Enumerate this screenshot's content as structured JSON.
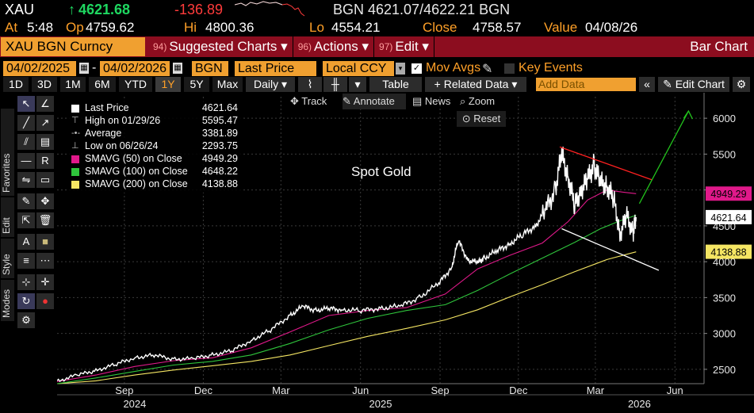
{
  "ticker": {
    "symbol": "XAU",
    "arrow": "↑",
    "last": "4621.68",
    "change": "-136.89",
    "source_quote": "BGN 4621.07/4622.21 BGN"
  },
  "info": {
    "at_label": "At",
    "at_value": "5:48",
    "op_label": "Op",
    "op_value": "4759.62",
    "hi_label": "Hi",
    "hi_value": "4800.36",
    "lo_label": "Lo",
    "lo_value": "4554.21",
    "close_label": "Close",
    "close_value": "4758.57",
    "value_label": "Value",
    "value_value": "04/08/26"
  },
  "menu": {
    "security": "XAU BGN Curncy",
    "items": [
      {
        "num": "94)",
        "label": "Suggested Charts ▾"
      },
      {
        "num": "96)",
        "label": "Actions ▾"
      },
      {
        "num": "97)",
        "label": "Edit ▾"
      }
    ],
    "right_label": "Bar Chart"
  },
  "daterow": {
    "start": "04/02/2025",
    "dash": "-",
    "end": "04/02/2026",
    "source": "BGN",
    "field": "Last Price",
    "currency": "Local CCY",
    "mov_avgs": "Mov Avgs",
    "key_events": "Key Events"
  },
  "toolrow": {
    "periods": [
      "1D",
      "3D",
      "1M",
      "6M",
      "YTD",
      "1Y",
      "5Y",
      "Max"
    ],
    "selected_period": "1Y",
    "frequency": "Daily ▾",
    "table": "Table",
    "related": "+ Related Data ▾",
    "add_data_placeholder": "Add Data",
    "edit_chart": "Edit Chart"
  },
  "sidebar_tabs": [
    "Favorites",
    "Edit",
    "Style",
    "Modes"
  ],
  "chart_buttons": {
    "track": "Track",
    "annotate": "Annotate",
    "news": "News",
    "zoom": "Zoom",
    "reset": "Reset"
  },
  "legend": {
    "rows": [
      {
        "name": "Last Price",
        "value": "4621.64",
        "color": "#ffffff",
        "kind": "box"
      },
      {
        "name": "High on 01/29/26",
        "value": "5595.47",
        "color": "#bbbbbb",
        "kind": "high"
      },
      {
        "name": "Average",
        "value": "3381.89",
        "color": "#bbbbbb",
        "kind": "avg"
      },
      {
        "name": "Low on 06/26/24",
        "value": "2293.75",
        "color": "#bbbbbb",
        "kind": "low"
      },
      {
        "name": "SMAVG (50)  on Close",
        "value": "4949.29",
        "color": "#e0198a",
        "kind": "box"
      },
      {
        "name": "SMAVG (100)  on Close",
        "value": "4648.22",
        "color": "#2fc53c",
        "kind": "box"
      },
      {
        "name": "SMAVG (200)  on Close",
        "value": "4138.88",
        "color": "#f5e663",
        "kind": "box"
      }
    ]
  },
  "annotation_text": "Spot Gold",
  "price_tags": [
    {
      "value": "4949.29",
      "bg": "#e0198a",
      "fg": "#000000"
    },
    {
      "value": "4621.64",
      "bg": "#ffffff",
      "fg": "#000000"
    },
    {
      "value": "4138.88",
      "bg": "#f5e663",
      "fg": "#000000"
    }
  ],
  "chart_data": {
    "type": "line",
    "title": "Spot Gold",
    "ylim": [
      2300,
      6300
    ],
    "yticks": [
      2500,
      3000,
      3500,
      4000,
      4500,
      5000,
      5500,
      6000
    ],
    "xticks": [
      {
        "label": "Sep",
        "t": 0.104
      },
      {
        "label": "Dec",
        "t": 0.226
      },
      {
        "label": "Mar",
        "t": 0.346
      },
      {
        "label": "Jun",
        "t": 0.469
      },
      {
        "label": "Sep",
        "t": 0.592
      },
      {
        "label": "Dec",
        "t": 0.713
      },
      {
        "label": "Mar",
        "t": 0.832
      },
      {
        "label": "Jun",
        "t": 0.955
      }
    ],
    "years": [
      {
        "label": "2024",
        "t": 0.12
      },
      {
        "label": "2025",
        "t": 0.5
      },
      {
        "label": "2026",
        "t": 0.9
      }
    ],
    "series": [
      {
        "name": "Last Price",
        "color": "#ffffff",
        "points": [
          [
            0,
            2330
          ],
          [
            0.03,
            2420
          ],
          [
            0.06,
            2480
          ],
          [
            0.09,
            2570
          ],
          [
            0.12,
            2660
          ],
          [
            0.15,
            2700
          ],
          [
            0.18,
            2640
          ],
          [
            0.21,
            2650
          ],
          [
            0.24,
            2700
          ],
          [
            0.27,
            2760
          ],
          [
            0.3,
            2900
          ],
          [
            0.33,
            3050
          ],
          [
            0.36,
            3250
          ],
          [
            0.38,
            3380
          ],
          [
            0.4,
            3320
          ],
          [
            0.42,
            3350
          ],
          [
            0.44,
            3330
          ],
          [
            0.47,
            3320
          ],
          [
            0.5,
            3350
          ],
          [
            0.53,
            3380
          ],
          [
            0.56,
            3500
          ],
          [
            0.59,
            3700
          ],
          [
            0.61,
            3920
          ],
          [
            0.62,
            4300
          ],
          [
            0.635,
            4020
          ],
          [
            0.65,
            3990
          ],
          [
            0.66,
            4050
          ],
          [
            0.68,
            4150
          ],
          [
            0.7,
            4250
          ],
          [
            0.72,
            4380
          ],
          [
            0.74,
            4500
          ],
          [
            0.755,
            4720
          ],
          [
            0.77,
            5000
          ],
          [
            0.78,
            5500
          ],
          [
            0.79,
            5180
          ],
          [
            0.8,
            4780
          ],
          [
            0.81,
            5000
          ],
          [
            0.82,
            5150
          ],
          [
            0.83,
            5350
          ],
          [
            0.84,
            5100
          ],
          [
            0.85,
            5050
          ],
          [
            0.86,
            4900
          ],
          [
            0.87,
            4380
          ],
          [
            0.88,
            4650
          ],
          [
            0.89,
            4400
          ],
          [
            0.895,
            4621
          ]
        ]
      },
      {
        "name": "SMAVG (50)",
        "color": "#e0198a",
        "points": [
          [
            0,
            2330
          ],
          [
            0.06,
            2420
          ],
          [
            0.12,
            2540
          ],
          [
            0.18,
            2620
          ],
          [
            0.24,
            2660
          ],
          [
            0.3,
            2800
          ],
          [
            0.36,
            3020
          ],
          [
            0.42,
            3250
          ],
          [
            0.48,
            3320
          ],
          [
            0.54,
            3360
          ],
          [
            0.6,
            3550
          ],
          [
            0.65,
            3900
          ],
          [
            0.7,
            4090
          ],
          [
            0.75,
            4260
          ],
          [
            0.79,
            4560
          ],
          [
            0.82,
            4860
          ],
          [
            0.85,
            5000
          ],
          [
            0.875,
            4970
          ],
          [
            0.895,
            4949
          ]
        ]
      },
      {
        "name": "SMAVG (100)",
        "color": "#2fc53c",
        "points": [
          [
            0,
            2300
          ],
          [
            0.06,
            2380
          ],
          [
            0.12,
            2470
          ],
          [
            0.18,
            2560
          ],
          [
            0.24,
            2610
          ],
          [
            0.3,
            2700
          ],
          [
            0.36,
            2860
          ],
          [
            0.42,
            3050
          ],
          [
            0.48,
            3210
          ],
          [
            0.54,
            3320
          ],
          [
            0.6,
            3400
          ],
          [
            0.65,
            3600
          ],
          [
            0.7,
            3830
          ],
          [
            0.75,
            4050
          ],
          [
            0.8,
            4270
          ],
          [
            0.84,
            4460
          ],
          [
            0.87,
            4570
          ],
          [
            0.895,
            4648
          ]
        ]
      },
      {
        "name": "SMAVG (200)",
        "color": "#f5e663",
        "points": [
          [
            0,
            2300
          ],
          [
            0.06,
            2340
          ],
          [
            0.12,
            2420
          ],
          [
            0.18,
            2490
          ],
          [
            0.24,
            2550
          ],
          [
            0.3,
            2610
          ],
          [
            0.36,
            2700
          ],
          [
            0.42,
            2830
          ],
          [
            0.48,
            2960
          ],
          [
            0.54,
            3070
          ],
          [
            0.6,
            3190
          ],
          [
            0.65,
            3330
          ],
          [
            0.7,
            3510
          ],
          [
            0.75,
            3680
          ],
          [
            0.8,
            3860
          ],
          [
            0.85,
            4030
          ],
          [
            0.895,
            4138
          ]
        ]
      }
    ],
    "trendlines": [
      {
        "color": "#ff2020",
        "from": [
          0.777,
          5600
        ],
        "to": [
          0.92,
          5140
        ]
      },
      {
        "color": "#ffffff",
        "from": [
          0.78,
          4460
        ],
        "to": [
          0.93,
          3880
        ]
      },
      {
        "color": "#22c21c",
        "from": [
          0.9,
          4810
        ],
        "to": [
          0.976,
          6100
        ],
        "arrow": true
      }
    ]
  }
}
